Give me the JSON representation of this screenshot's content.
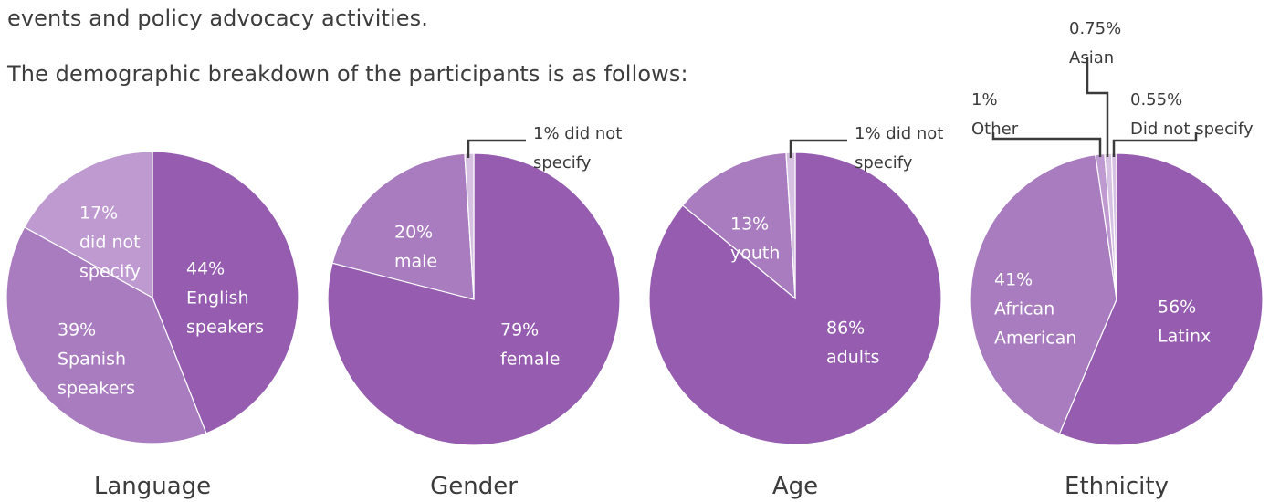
{
  "text": {
    "line1": "events and policy advocacy activities.",
    "line2": "The demographic breakdown of the participants is as follows:"
  },
  "colors": {
    "dark": "#955cb0",
    "medium": "#a97cc0",
    "light": "#be9ad0",
    "pale": "#d7c1e2",
    "label_in": "#ffffff",
    "label_out": "#3b3b3b"
  },
  "chart_data": [
    {
      "type": "pie",
      "title": "Language",
      "slices": [
        {
          "label": "English speakers",
          "value": 44,
          "pct": "44%",
          "lines": [
            "English",
            "speakers"
          ],
          "color": "dark"
        },
        {
          "label": "Spanish speakers",
          "value": 39,
          "pct": "39%",
          "lines": [
            "Spanish",
            "speakers"
          ],
          "color": "medium"
        },
        {
          "label": "did not specify",
          "value": 17,
          "pct": "17%",
          "lines": [
            "did not",
            "specify"
          ],
          "color": "light"
        }
      ]
    },
    {
      "type": "pie",
      "title": "Gender",
      "slices": [
        {
          "label": "female",
          "value": 79,
          "pct": "79%",
          "lines": [
            "female"
          ],
          "color": "dark"
        },
        {
          "label": "male",
          "value": 20,
          "pct": "20%",
          "lines": [
            "male"
          ],
          "color": "medium"
        },
        {
          "label": "did not specify",
          "value": 1,
          "pct": "1%",
          "lines": [
            "1% did not",
            "specify"
          ],
          "color": "pale"
        }
      ]
    },
    {
      "type": "pie",
      "title": "Age",
      "slices": [
        {
          "label": "adults",
          "value": 86,
          "pct": "86%",
          "lines": [
            "adults"
          ],
          "color": "dark"
        },
        {
          "label": "youth",
          "value": 13,
          "pct": "13%",
          "lines": [
            "youth"
          ],
          "color": "medium"
        },
        {
          "label": "did not specify",
          "value": 1,
          "pct": "1%",
          "lines": [
            "1% did not",
            "specify"
          ],
          "color": "pale"
        }
      ]
    },
    {
      "type": "pie",
      "title": "Ethnicity",
      "slices": [
        {
          "label": "Latinx",
          "value": 56,
          "pct": "56%",
          "lines": [
            "Latinx"
          ],
          "color": "dark"
        },
        {
          "label": "African American",
          "value": 41,
          "pct": "41%",
          "lines": [
            "African",
            "American"
          ],
          "color": "medium"
        },
        {
          "label": "Other",
          "value": 1,
          "pct": "1%",
          "lines": [
            "Other"
          ],
          "color": "light"
        },
        {
          "label": "Asian",
          "value": 0.75,
          "pct": "0.75%",
          "lines": [
            "Asian"
          ],
          "color": "pale"
        },
        {
          "label": "Did not specify",
          "value": 0.55,
          "pct": "0.55%",
          "lines": [
            "Did not specify"
          ],
          "color": "pale"
        }
      ]
    }
  ]
}
